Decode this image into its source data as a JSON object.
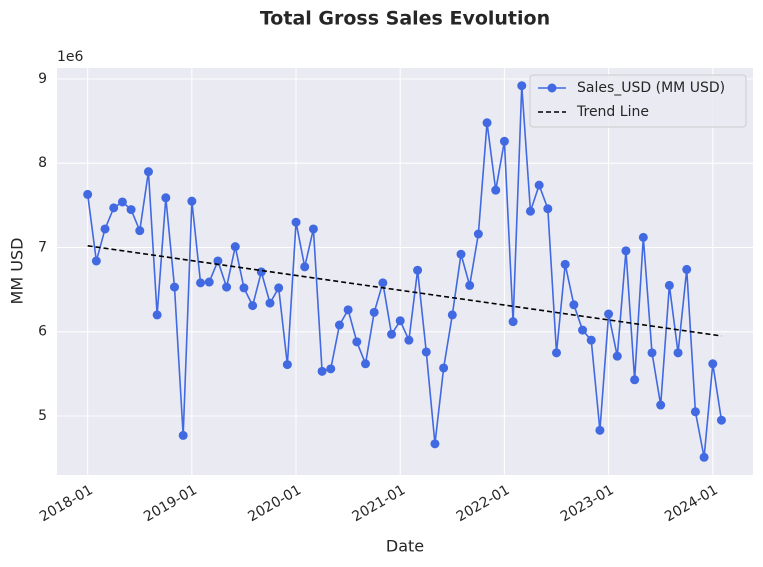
{
  "chart_data": {
    "type": "line",
    "title": "Total Gross Sales Evolution",
    "x_label": "Date",
    "y_label": "MM USD",
    "y_offset_label": "1e6",
    "x": [
      "2018-01",
      "2018-02",
      "2018-03",
      "2018-04",
      "2018-05",
      "2018-06",
      "2018-07",
      "2018-08",
      "2018-09",
      "2018-10",
      "2018-11",
      "2018-12",
      "2019-01",
      "2019-02",
      "2019-03",
      "2019-04",
      "2019-05",
      "2019-06",
      "2019-07",
      "2019-08",
      "2019-09",
      "2019-10",
      "2019-11",
      "2019-12",
      "2020-01",
      "2020-02",
      "2020-03",
      "2020-04",
      "2020-05",
      "2020-06",
      "2020-07",
      "2020-08",
      "2020-09",
      "2020-10",
      "2020-11",
      "2020-12",
      "2021-01",
      "2021-02",
      "2021-03",
      "2021-04",
      "2021-05",
      "2021-06",
      "2021-07",
      "2021-08",
      "2021-09",
      "2021-10",
      "2021-11",
      "2021-12",
      "2022-01",
      "2022-02",
      "2022-03",
      "2022-04",
      "2022-05",
      "2022-06",
      "2022-07",
      "2022-08",
      "2022-09",
      "2022-10",
      "2022-11",
      "2022-12",
      "2023-01",
      "2023-02",
      "2023-03",
      "2023-04",
      "2023-05",
      "2023-06",
      "2023-07",
      "2023-08",
      "2023-09",
      "2023-10",
      "2023-11",
      "2023-12",
      "2024-01",
      "2024-02"
    ],
    "series": [
      {
        "name": "Sales_USD (MM USD)",
        "color": "#4169e1",
        "marker": "o",
        "values": [
          7.63,
          6.84,
          7.22,
          7.47,
          7.54,
          7.45,
          7.2,
          7.9,
          6.2,
          7.59,
          6.53,
          4.77,
          7.55,
          6.58,
          6.59,
          6.84,
          6.53,
          7.01,
          6.52,
          6.31,
          6.71,
          6.34,
          6.52,
          5.61,
          7.3,
          6.77,
          7.22,
          5.53,
          5.56,
          6.08,
          6.26,
          5.88,
          5.62,
          6.23,
          6.58,
          5.97,
          6.13,
          5.9,
          6.73,
          5.76,
          4.67,
          5.57,
          6.2,
          6.92,
          6.55,
          7.16,
          8.48,
          7.68,
          8.26,
          6.12,
          8.92,
          7.43,
          7.74,
          7.46,
          5.75,
          6.8,
          6.32,
          6.02,
          5.9,
          4.83,
          6.21,
          5.71,
          6.96,
          5.43,
          7.12,
          5.75,
          5.13,
          6.55,
          5.75,
          6.74,
          5.05,
          4.51,
          5.62,
          4.95
        ]
      },
      {
        "name": "Trend Line",
        "color": "#000000",
        "dashed": true,
        "x": [
          "2018-01",
          "2024-02"
        ],
        "values": [
          7.02,
          5.95
        ]
      }
    ],
    "xlim": [
      "2017-09-15",
      "2024-05-20"
    ],
    "xticks": [
      "2018-01",
      "2019-01",
      "2020-01",
      "2021-01",
      "2022-01",
      "2023-01",
      "2024-01"
    ],
    "ylim": [
      4.3,
      9.13
    ],
    "yticks": [
      5,
      6,
      7,
      8,
      9
    ],
    "grid": true,
    "legend": "upper right"
  }
}
